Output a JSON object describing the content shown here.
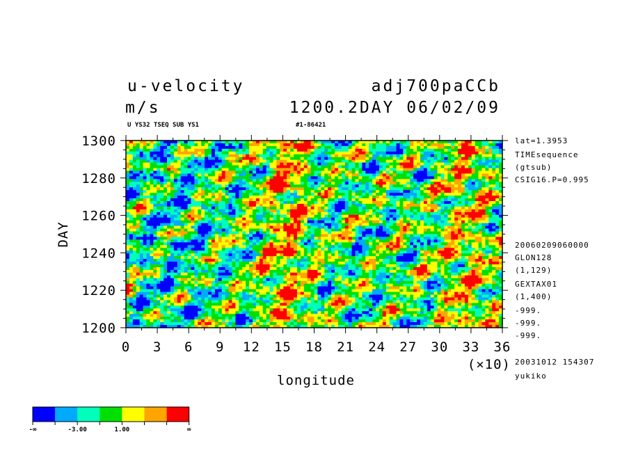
{
  "header": {
    "var_name": "u-velocity",
    "experiment": "adj700paCCb",
    "units": "m/s",
    "time_stamp": "1200.2DAY 06/02/09",
    "subtitle_left": "U YS32 TSEQ SUB YS1",
    "subtitle_right": "#1-86421"
  },
  "side_info": [
    "lat=1.3953",
    "TIMEsequence",
    "(gtsub)",
    "CSIG16.P=0.995",
    "20060209060000",
    "GLON128",
    "(1,129)",
    "GEXTAX01",
    "(1,400)",
    "-999.",
    "-999.",
    "-999.",
    "20031012 154307",
    "yukiko"
  ],
  "chart_data": {
    "type": "heatmap",
    "xlabel": "longitude",
    "ylabel": "DAY",
    "x_multiplier_label": "(×10)",
    "xlim": [
      0,
      36
    ],
    "ylim": [
      1200,
      1300
    ],
    "x_ticks": [
      "0",
      "3",
      "6",
      "9",
      "12",
      "15",
      "18",
      "21",
      "24",
      "27",
      "30",
      "33",
      "36"
    ],
    "y_ticks": [
      "1200",
      "1220",
      "1240",
      "1260",
      "1280",
      "1300"
    ],
    "colorbar": {
      "colors": [
        "#0000ff",
        "#00aaff",
        "#00ffbb",
        "#00e000",
        "#ffff00",
        "#ffa500",
        "#ff0000"
      ],
      "labels": [
        "-∞",
        "-3.00",
        "1.00",
        "∞"
      ]
    }
  }
}
